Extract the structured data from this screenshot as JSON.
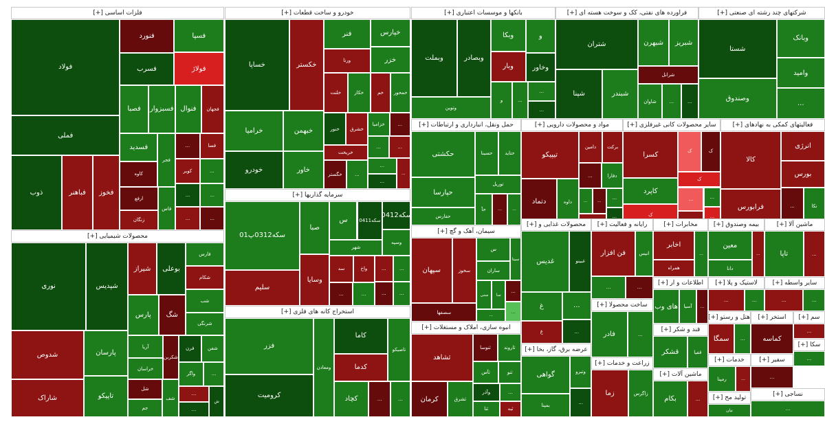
{
  "colors": {
    "dark_green": "#0d4d0d",
    "green": "#1d7d1d",
    "bright_green": "#2f9e2f",
    "light_green": "#57c057",
    "dark_red": "#650b0b",
    "red": "#8e1414",
    "bright_red": "#d81f1f",
    "pale_red": "#f15a5a",
    "header_bg": "#ffffff"
  },
  "sectors": [
    {
      "header": "فلزات اساسی [+]",
      "tiles": [
        {
          "name": "فولاد",
          "c": "dark_green"
        },
        {
          "name": "فملی",
          "c": "dark_green"
        },
        {
          "name": "ذوب",
          "c": "dark_green"
        },
        {
          "name": "فباهنر",
          "c": "red"
        },
        {
          "name": "فخوز",
          "c": "red"
        },
        {
          "name": "فنورد",
          "c": "dark_red"
        },
        {
          "name": "فولاژ",
          "c": "bright_red"
        },
        {
          "name": "فسرب",
          "c": "dark_green"
        },
        {
          "name": "فسپا",
          "c": "green"
        },
        {
          "name": "فسبزوار",
          "c": "green"
        },
        {
          "name": "فصبا",
          "c": "green"
        },
        {
          "name": "فنوال",
          "c": "green"
        },
        {
          "name": "کاوه",
          "c": "dark_red"
        },
        {
          "name": "فجهان",
          "c": "red"
        },
        {
          "name": "فسدید",
          "c": "green"
        },
        {
          "name": "ارفع",
          "c": "dark_red"
        },
        {
          "name": "فجر",
          "c": "green"
        },
        {
          "name": "زنگان",
          "c": "red"
        },
        {
          "name": "کویر",
          "c": "red"
        },
        {
          "name": "فسا",
          "c": "red"
        },
        {
          "name": "فاس",
          "c": "green"
        },
        {
          "name": "...",
          "c": "dark_red"
        },
        {
          "name": "...",
          "c": "green"
        },
        {
          "name": "...",
          "c": "dark_green"
        },
        {
          "name": "...",
          "c": "red"
        },
        {
          "name": "...",
          "c": "green"
        },
        {
          "name": "...",
          "c": "dark_red"
        }
      ]
    },
    {
      "header": "محصولات شیمیایی [+]",
      "tiles": [
        {
          "name": "نوری",
          "c": "dark_green"
        },
        {
          "name": "شپدیس",
          "c": "dark_green"
        },
        {
          "name": "شدوص",
          "c": "red"
        },
        {
          "name": "شاراک",
          "c": "red"
        },
        {
          "name": "تاپیکو",
          "c": "green"
        },
        {
          "name": "پارسان",
          "c": "green"
        },
        {
          "name": "بوعلی",
          "c": "dark_green"
        },
        {
          "name": "شیراز",
          "c": "red"
        },
        {
          "name": "پارس",
          "c": "green"
        },
        {
          "name": "فارس",
          "c": "green"
        },
        {
          "name": "شرنگی",
          "c": "green"
        },
        {
          "name": "شگ",
          "c": "dark_red"
        },
        {
          "name": "شب",
          "c": "green"
        },
        {
          "name": "شکام",
          "c": "red"
        },
        {
          "name": "خراسان",
          "c": "green"
        },
        {
          "name": "جم",
          "c": "green"
        },
        {
          "name": "شکربن",
          "c": "dark_red"
        },
        {
          "name": "آریا",
          "c": "green"
        },
        {
          "name": "فرن",
          "c": "dark_green"
        },
        {
          "name": "شفن",
          "c": "green"
        },
        {
          "name": "واگر",
          "c": "green"
        },
        {
          "name": "شل",
          "c": "dark_red"
        },
        {
          "name": "ش",
          "c": "dark_green"
        },
        {
          "name": "شف",
          "c": "green"
        },
        {
          "name": "...",
          "c": "green"
        },
        {
          "name": "...",
          "c": "red"
        },
        {
          "name": "...",
          "c": "dark_green"
        }
      ]
    },
    {
      "header": "خودرو و ساخت قطعات [+]",
      "tiles": [
        {
          "name": "خساپا",
          "c": "dark_green"
        },
        {
          "name": "خکستر",
          "c": "red"
        },
        {
          "name": "خرامیا",
          "c": "green"
        },
        {
          "name": "خودرو",
          "c": "dark_green"
        },
        {
          "name": "خبهمن",
          "c": "green"
        },
        {
          "name": "خاور",
          "c": "green"
        },
        {
          "name": "ورنا",
          "c": "red"
        },
        {
          "name": "فنر",
          "c": "green"
        },
        {
          "name": "خپارس",
          "c": "green"
        },
        {
          "name": "خزر",
          "c": "green"
        },
        {
          "name": "خکار",
          "c": "green"
        },
        {
          "name": "خلنت",
          "c": "red"
        },
        {
          "name": "خم",
          "c": "red"
        },
        {
          "name": "خمحور",
          "c": "green"
        },
        {
          "name": "خگستر",
          "c": "dark_red"
        },
        {
          "name": "خنور",
          "c": "dark_green"
        },
        {
          "name": "خزامیا",
          "c": "green"
        },
        {
          "name": "خشرق",
          "c": "red"
        },
        {
          "name": "خریخت",
          "c": "red"
        },
        {
          "name": "...",
          "c": "green"
        },
        {
          "name": "...",
          "c": "dark_red"
        },
        {
          "name": "...",
          "c": "green"
        },
        {
          "name": "...",
          "c": "red"
        },
        {
          "name": "...",
          "c": "green"
        },
        {
          "name": "...",
          "c": "dark_green"
        },
        {
          "name": "...",
          "c": "red"
        }
      ]
    },
    {
      "header": "سرمایه گذاریها [+]",
      "tiles": [
        {
          "name": "سکه0312پ01",
          "c": "green"
        },
        {
          "name": "سلیم",
          "c": "red"
        },
        {
          "name": "وسایا",
          "c": "red"
        },
        {
          "name": "صبا",
          "c": "green"
        },
        {
          "name": "س",
          "c": "green"
        },
        {
          "name": "سکه0411",
          "c": "dark_green"
        },
        {
          "name": "سکه0412",
          "c": "dark_green"
        },
        {
          "name": "شهر",
          "c": "green"
        },
        {
          "name": "واخ",
          "c": "red"
        },
        {
          "name": "وسپه",
          "c": "green"
        },
        {
          "name": "سد",
          "c": "red"
        },
        {
          "name": "...",
          "c": "dark_red"
        },
        {
          "name": "...",
          "c": "green"
        },
        {
          "name": "...",
          "c": "red"
        },
        {
          "name": "...",
          "c": "green"
        },
        {
          "name": "...",
          "c": "dark_red"
        },
        {
          "name": "...",
          "c": "green"
        }
      ]
    },
    {
      "header": "استخراج کانه های فلزی [+]",
      "tiles": [
        {
          "name": "فزر",
          "c": "green"
        },
        {
          "name": "کرومیت",
          "c": "dark_green"
        },
        {
          "name": "ومعادن",
          "c": "green"
        },
        {
          "name": "کاما",
          "c": "dark_green"
        },
        {
          "name": "تاصیکو",
          "c": "green"
        },
        {
          "name": "کدما",
          "c": "red"
        },
        {
          "name": "کچاد",
          "c": "green"
        },
        {
          "name": "...",
          "c": "dark_red"
        },
        {
          "name": "...",
          "c": "green"
        }
      ]
    },
    {
      "header": "بانکها و موسسات اعتباری [+]",
      "tiles": [
        {
          "name": "وبملت",
          "c": "dark_green"
        },
        {
          "name": "وبصادر",
          "c": "dark_green"
        },
        {
          "name": "وتوین",
          "c": "green"
        },
        {
          "name": "وبار",
          "c": "red"
        },
        {
          "name": "وبکا",
          "c": "green"
        },
        {
          "name": "و",
          "c": "green"
        },
        {
          "name": "وخاور",
          "c": "dark_green"
        },
        {
          "name": "و",
          "c": "green"
        },
        {
          "name": "...",
          "c": "green"
        },
        {
          "name": "...",
          "c": "dark_green"
        },
        {
          "name": "...",
          "c": "green"
        }
      ]
    },
    {
      "header": "فراورده های نفتی، کک و سوخت هسته ای [+]",
      "tiles": [
        {
          "name": "شتران",
          "c": "dark_green"
        },
        {
          "name": "شپنا",
          "c": "dark_green"
        },
        {
          "name": "شبندر",
          "c": "green"
        },
        {
          "name": "شبهرن",
          "c": "green"
        },
        {
          "name": "شبریز",
          "c": "green"
        },
        {
          "name": "شاوان",
          "c": "green"
        },
        {
          "name": "شرانل",
          "c": "dark_red"
        },
        {
          "name": "...",
          "c": "green"
        },
        {
          "name": "...",
          "c": "dark_green"
        }
      ]
    },
    {
      "header": "شرکتهای چند رشته ای صنعتی [+]",
      "tiles": [
        {
          "name": "شستا",
          "c": "dark_green"
        },
        {
          "name": "وصندوق",
          "c": "green"
        },
        {
          "name": "وبانک",
          "c": "green"
        },
        {
          "name": "وامید",
          "c": "green"
        },
        {
          "name": "...",
          "c": "green"
        }
      ]
    },
    {
      "header": "حمل ونقل، انبارداری و ارتباطات [+]",
      "tiles": [
        {
          "name": "حکشتی",
          "c": "green"
        },
        {
          "name": "حپارسا",
          "c": "green"
        },
        {
          "name": "حفارس",
          "c": "green"
        },
        {
          "name": "حتاید",
          "c": "green"
        },
        {
          "name": "حسینا",
          "c": "green"
        },
        {
          "name": "توریل",
          "c": "green"
        },
        {
          "name": "حآ",
          "c": "green"
        },
        {
          "name": "...",
          "c": "dark_red"
        },
        {
          "name": "...",
          "c": "green"
        }
      ]
    },
    {
      "header": "مواد و محصولات دارویی [+]",
      "tiles": [
        {
          "name": "تیپیکو",
          "c": "red"
        },
        {
          "name": "دتماد",
          "c": "dark_red"
        },
        {
          "name": "داوه",
          "c": "green"
        },
        {
          "name": "برکت",
          "c": "red"
        },
        {
          "name": "دامین",
          "c": "red"
        },
        {
          "name": "دفارا",
          "c": "green"
        },
        {
          "name": "...",
          "c": "dark_red"
        },
        {
          "name": "...",
          "c": "green"
        },
        {
          "name": "...",
          "c": "red"
        },
        {
          "name": "...",
          "c": "dark_green"
        },
        {
          "name": "...",
          "c": "dark_red"
        },
        {
          "name": "...",
          "c": "green"
        }
      ]
    },
    {
      "header": "سایر محصولات کانی غیرفلزی [+]",
      "tiles": [
        {
          "name": "کسرا",
          "c": "red"
        },
        {
          "name": "کاپرد",
          "c": "green"
        },
        {
          "name": "ک",
          "c": "bright_red"
        },
        {
          "name": "ک",
          "c": "pale_red"
        },
        {
          "name": "ک",
          "c": "dark_red"
        },
        {
          "name": "ک",
          "c": "bright_red"
        },
        {
          "name": "...",
          "c": "pale_red"
        },
        {
          "name": "...",
          "c": "red"
        },
        {
          "name": "...",
          "c": "green"
        },
        {
          "name": "...",
          "c": "bright_red"
        }
      ]
    },
    {
      "header": "فعالیتهای کمکی به نهادهای [+]",
      "tiles": [
        {
          "name": "کالا",
          "c": "red"
        },
        {
          "name": "فرابورس",
          "c": "red"
        },
        {
          "name": "انرژی",
          "c": "red"
        },
        {
          "name": "بورس",
          "c": "red"
        },
        {
          "name": "نکا",
          "c": "green"
        },
        {
          "name": "...",
          "c": "dark_red"
        }
      ]
    },
    {
      "header": "سیمان، آهک و گچ [+]",
      "tiles": [
        {
          "name": "سپهان",
          "c": "red"
        },
        {
          "name": "سخوز",
          "c": "red"
        },
        {
          "name": "سصفها",
          "c": "dark_red"
        },
        {
          "name": "س",
          "c": "green"
        },
        {
          "name": "ساران",
          "c": "green"
        },
        {
          "name": "سیتا",
          "c": "green"
        },
        {
          "name": "سنی",
          "c": "green"
        },
        {
          "name": "سا",
          "c": "green"
        },
        {
          "name": "...",
          "c": "dark_red"
        },
        {
          "name": "...",
          "c": "light_green"
        },
        {
          "name": "...",
          "c": "green"
        }
      ]
    },
    {
      "header": "انبوه سازی، املاک و مستغلات [+]",
      "tiles": [
        {
          "name": "ثشاهد",
          "c": "red"
        },
        {
          "name": "کرمان",
          "c": "dark_red"
        },
        {
          "name": "ثشرق",
          "c": "green"
        },
        {
          "name": "ثنوسا",
          "c": "dark_red"
        },
        {
          "name": "ثاروند",
          "c": "green"
        },
        {
          "name": "ثآس",
          "c": "green"
        },
        {
          "name": "ثنا",
          "c": "green"
        },
        {
          "name": "ثنو",
          "c": "green"
        },
        {
          "name": "وآذر",
          "c": "dark_green"
        },
        {
          "name": "ثبه",
          "c": "red"
        },
        {
          "name": "...",
          "c": "green"
        }
      ]
    },
    {
      "header": "محصولات غذایی و [+]",
      "tiles": [
        {
          "name": "غدیس",
          "c": "green"
        },
        {
          "name": "غبینو",
          "c": "dark_green"
        },
        {
          "name": "غ",
          "c": "green"
        },
        {
          "name": "غ",
          "c": "red"
        },
        {
          "name": "...",
          "c": "green"
        },
        {
          "name": "...",
          "c": "dark_green"
        }
      ]
    },
    {
      "header": "رایانه و فعالیت [+]",
      "tiles": [
        {
          "name": "فن افزار",
          "c": "red"
        },
        {
          "name": "انیس",
          "c": "green"
        },
        {
          "name": "...",
          "c": "green"
        },
        {
          "name": "...",
          "c": "dark_red"
        }
      ]
    },
    {
      "header": "عرضه برق، گاز، بخا [+]",
      "tiles": [
        {
          "name": "گواهی",
          "c": "green"
        },
        {
          "name": "بمپنا",
          "c": "green"
        },
        {
          "name": "وتبرو",
          "c": "green"
        },
        {
          "name": "...",
          "c": "dark_green"
        }
      ]
    },
    {
      "header": "مخابرات [+]",
      "tiles": [
        {
          "name": "اخابر",
          "c": "red"
        },
        {
          "name": "همراه",
          "c": "red"
        },
        {
          "name": "...",
          "c": "green"
        }
      ]
    },
    {
      "header": "بیمه وصندوق [+]",
      "tiles": [
        {
          "name": "معین",
          "c": "green"
        },
        {
          "name": "دانا",
          "c": "green"
        },
        {
          "name": "...",
          "c": "red"
        }
      ]
    },
    {
      "header": "ماشین آلا [+]",
      "tiles": [
        {
          "name": "تاپا",
          "c": "green"
        },
        {
          "name": "...",
          "c": "red"
        }
      ]
    },
    {
      "header": "اطلاعات و ار [+]",
      "tiles": [
        {
          "name": "های وب",
          "c": "green"
        },
        {
          "name": "آسیا",
          "c": "green"
        },
        {
          "name": "...",
          "c": "dark_red"
        }
      ]
    },
    {
      "header": "ساخت محصولا [+]",
      "tiles": [
        {
          "name": "فادر",
          "c": "green"
        },
        {
          "name": "...",
          "c": "green"
        }
      ]
    },
    {
      "header": "لاستیک و پلا [+]",
      "tiles": [
        {
          "name": "...",
          "c": "red"
        },
        {
          "name": "...",
          "c": "green"
        }
      ]
    },
    {
      "header": "سایر واسطه [+]",
      "tiles": [
        {
          "name": "...",
          "c": "red"
        },
        {
          "name": "...",
          "c": "green"
        }
      ]
    },
    {
      "header": "قند و شکر [+]",
      "tiles": [
        {
          "name": "قشکر",
          "c": "green"
        },
        {
          "name": "قفیا",
          "c": "green"
        }
      ]
    },
    {
      "header": "زراعت و خدمات [+]",
      "tiles": [
        {
          "name": "زما",
          "c": "red"
        },
        {
          "name": "زاگرس",
          "c": "green"
        }
      ]
    },
    {
      "header": "هتل و رستو [+]",
      "tiles": [
        {
          "name": "سمگا",
          "c": "red"
        },
        {
          "name": "...",
          "c": "green"
        }
      ]
    },
    {
      "header": "ماشین آلات [+]",
      "tiles": [
        {
          "name": "بکام",
          "c": "green"
        },
        {
          "name": "...",
          "c": "red"
        }
      ]
    },
    {
      "header": "استخر [+]",
      "tiles": [
        {
          "name": "کماسه",
          "c": "dark_red"
        }
      ]
    },
    {
      "header": "خدمات [+]",
      "tiles": [
        {
          "name": "رمپنا",
          "c": "green"
        },
        {
          "name": "...",
          "c": "red"
        }
      ]
    },
    {
      "header": "تولید مح [+]",
      "tiles": [
        {
          "name": "نیان",
          "c": "green"
        }
      ]
    },
    {
      "header": "سم [+]",
      "tiles": [
        {
          "name": "...",
          "c": "red"
        }
      ]
    },
    {
      "header": "سکا [+]",
      "tiles": [
        {
          "name": "...",
          "c": "green"
        }
      ]
    },
    {
      "header": "سفیر [+]",
      "tiles": [
        {
          "name": "...",
          "c": "dark_red"
        }
      ]
    },
    {
      "header": "نساجی [+]",
      "tiles": [
        {
          "name": "...",
          "c": "green"
        }
      ]
    },
    {
      "header": "[+]",
      "tiles": [
        {
          "name": "...",
          "c": "red"
        }
      ]
    }
  ]
}
